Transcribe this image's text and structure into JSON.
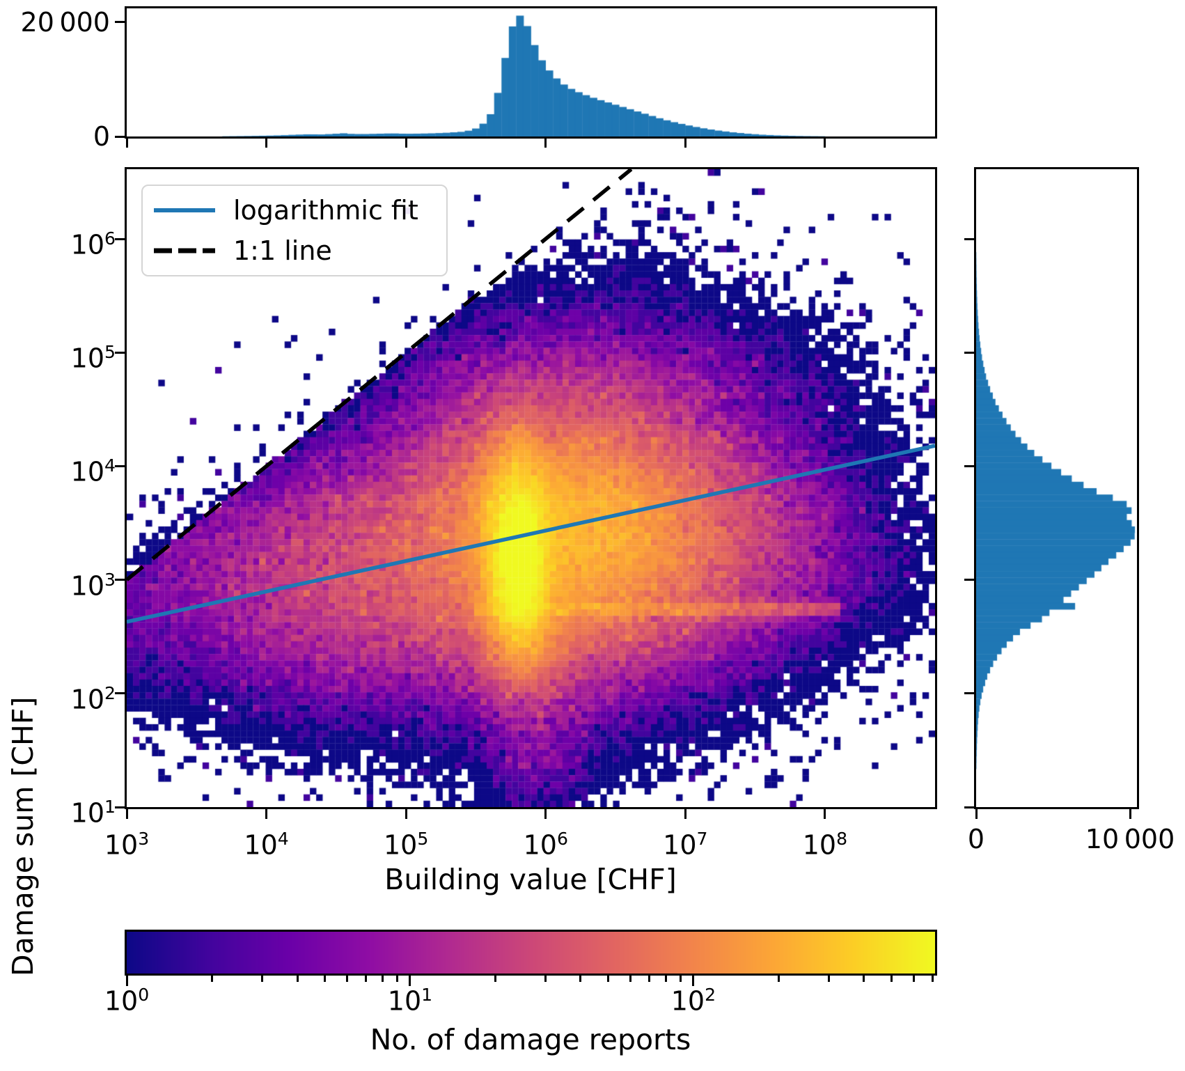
{
  "figure": {
    "background": "#ffffff",
    "axis_color": "#000000"
  },
  "colors": {
    "hist": "#1f77b4",
    "fit_line": "#1f77b4",
    "one_to_one": "#000000",
    "legend_border": "#d5d5d5"
  },
  "chart_data": [
    {
      "id": "top_marginal_histogram",
      "type": "bar",
      "orientation": "vertical",
      "xscale": "log",
      "shares_x_with": "main",
      "ylim": [
        0,
        22400
      ],
      "y_ticks": [
        {
          "value": 20000,
          "label": "20 000"
        },
        {
          "value": 0,
          "label": "0"
        }
      ],
      "bins": 110,
      "profile_log10x_count": [
        [
          3.0,
          0
        ],
        [
          3.55,
          0
        ],
        [
          3.7,
          40
        ],
        [
          3.85,
          80
        ],
        [
          4.0,
          140
        ],
        [
          4.1,
          200
        ],
        [
          4.2,
          300
        ],
        [
          4.3,
          380
        ],
        [
          4.4,
          350
        ],
        [
          4.5,
          480
        ],
        [
          4.55,
          560
        ],
        [
          4.62,
          430
        ],
        [
          4.7,
          420
        ],
        [
          4.8,
          480
        ],
        [
          4.9,
          540
        ],
        [
          5.0,
          470
        ],
        [
          5.1,
          500
        ],
        [
          5.2,
          560
        ],
        [
          5.3,
          660
        ],
        [
          5.4,
          820
        ],
        [
          5.48,
          1150
        ],
        [
          5.54,
          1900
        ],
        [
          5.6,
          3600
        ],
        [
          5.65,
          6800
        ],
        [
          5.7,
          12500
        ],
        [
          5.74,
          17500
        ],
        [
          5.78,
          20600
        ],
        [
          5.82,
          21200
        ],
        [
          5.86,
          19800
        ],
        [
          5.9,
          17200
        ],
        [
          5.94,
          14800
        ],
        [
          5.98,
          13000
        ],
        [
          6.03,
          11400
        ],
        [
          6.08,
          10100
        ],
        [
          6.14,
          8900
        ],
        [
          6.2,
          8100
        ],
        [
          6.28,
          7300
        ],
        [
          6.36,
          6600
        ],
        [
          6.44,
          6000
        ],
        [
          6.52,
          5400
        ],
        [
          6.6,
          4800
        ],
        [
          6.68,
          4200
        ],
        [
          6.76,
          3600
        ],
        [
          6.84,
          3000
        ],
        [
          6.92,
          2500
        ],
        [
          7.0,
          2050
        ],
        [
          7.08,
          1650
        ],
        [
          7.16,
          1300
        ],
        [
          7.25,
          980
        ],
        [
          7.35,
          700
        ],
        [
          7.45,
          480
        ],
        [
          7.55,
          310
        ],
        [
          7.65,
          195
        ],
        [
          7.75,
          120
        ],
        [
          7.85,
          70
        ],
        [
          8.0,
          35
        ],
        [
          8.15,
          18
        ],
        [
          8.3,
          8
        ],
        [
          8.5,
          3
        ],
        [
          8.788,
          0
        ]
      ]
    },
    {
      "id": "main_density",
      "type": "heatmap",
      "xlabel": "Building value [CHF]",
      "ylabel": "Damage sum [CHF]",
      "xscale": "log",
      "yscale": "log",
      "xlim_log10": [
        3,
        8.788
      ],
      "ylim_log10": [
        1,
        6.613
      ],
      "x_ticks": [
        {
          "log": 3,
          "label": "10^3"
        },
        {
          "log": 4,
          "label": "10^4"
        },
        {
          "log": 5,
          "label": "10^5"
        },
        {
          "log": 6,
          "label": "10^6"
        },
        {
          "log": 7,
          "label": "10^7"
        },
        {
          "log": 8,
          "label": "10^8"
        }
      ],
      "y_ticks": [
        {
          "log": 6,
          "label": "10^6"
        },
        {
          "log": 5,
          "label": "10^5"
        },
        {
          "log": 4,
          "label": "10^4"
        },
        {
          "log": 3,
          "label": "10^3"
        },
        {
          "log": 2,
          "label": "10^2"
        },
        {
          "log": 1,
          "label": "10^1"
        }
      ],
      "colormap": "plasma",
      "norm": "log",
      "vmin": 1,
      "vmax": 713,
      "grid_bins": [
        128,
        100
      ],
      "legend": {
        "items": [
          {
            "label": "logarithmic fit",
            "style": "solid",
            "color": "#1f77b4"
          },
          {
            "label": "1:1 line",
            "style": "dashed",
            "color": "#000000"
          }
        ]
      },
      "fit_line": {
        "x_log10": [
          3,
          8.788
        ],
        "y_log10": [
          2.63,
          4.18
        ]
      },
      "one_to_one_line": {
        "x_log10": [
          3,
          6.613
        ],
        "y_log10": [
          3,
          6.613
        ]
      },
      "density_model": {
        "seed": 11,
        "comment_units": "gaussian components in log10-log10 space: [amplitude_counts, cx, cy, sigx, sigy]",
        "components": [
          [
            620,
            5.8,
            3.32,
            0.13,
            0.45
          ],
          [
            300,
            5.82,
            2.95,
            0.11,
            0.3
          ],
          [
            160,
            6.15,
            3.45,
            0.48,
            0.52
          ],
          [
            70,
            6.35,
            3.4,
            0.72,
            0.48
          ],
          [
            22,
            5.55,
            3.1,
            1.05,
            0.5
          ],
          [
            14,
            4.65,
            2.95,
            0.72,
            0.45
          ],
          [
            3.0,
            5.9,
            3.15,
            0.85,
            1.0
          ],
          [
            70,
            5.85,
            2.55,
            0.2,
            0.28
          ],
          [
            6,
            5.95,
            1.8,
            0.22,
            0.45
          ],
          [
            9,
            6.35,
            4.55,
            0.75,
            0.42
          ],
          [
            1.2,
            4.55,
            2.05,
            0.75,
            0.42
          ],
          [
            1.6,
            3.18,
            2.75,
            0.22,
            0.45
          ],
          [
            0.35,
            7.9,
            3.5,
            0.55,
            0.85
          ],
          [
            0.12,
            8.45,
            4.0,
            0.35,
            1.0
          ],
          [
            0.5,
            7.3,
            4.6,
            0.6,
            0.5
          ],
          [
            0.4,
            6.6,
            5.6,
            0.6,
            0.45
          ],
          [
            0.5,
            7.0,
            2.1,
            0.5,
            0.45
          ]
        ],
        "streak_rows": [
          {
            "y_log10": 2.745,
            "sigma_y": 0.04,
            "amp": 90,
            "cx": 6.3,
            "sigma_x": 1.1,
            "x_window": [
              5.5,
              8.1
            ]
          },
          {
            "y_log10": 3.7,
            "sigma_y": 0.05,
            "amp": 14,
            "cx": 5.6,
            "sigma_x": 1.0,
            "x_window": [
              4.3,
              7.6
            ]
          }
        ],
        "diagonal_band": {
          "amp": 0.55,
          "offset": -0.55,
          "sigma": 0.45,
          "cx": 4.4,
          "sigma_x": 1.1
        },
        "above_identity_suppression": 0.12,
        "noise_sigma": 0.42
      }
    },
    {
      "id": "right_marginal_histogram",
      "type": "bar",
      "orientation": "horizontal",
      "yscale": "log",
      "shares_y_with": "main",
      "xlim": [
        0,
        10450
      ],
      "x_ticks": [
        {
          "value": 0,
          "label": "0"
        },
        {
          "value": 10000,
          "label": "10 000"
        }
      ],
      "bins": 100,
      "profile_log10y_count": [
        [
          1.0,
          0
        ],
        [
          1.15,
          4
        ],
        [
          1.3,
          12
        ],
        [
          1.45,
          30
        ],
        [
          1.6,
          65
        ],
        [
          1.75,
          120
        ],
        [
          1.85,
          190
        ],
        [
          1.95,
          300
        ],
        [
          2.05,
          480
        ],
        [
          2.15,
          720
        ],
        [
          2.25,
          1050
        ],
        [
          2.35,
          1500
        ],
        [
          2.45,
          2100
        ],
        [
          2.55,
          2900
        ],
        [
          2.62,
          3800
        ],
        [
          2.68,
          4600
        ],
        [
          2.71,
          4500
        ],
        [
          2.73,
          7200
        ],
        [
          2.76,
          7200
        ],
        [
          2.78,
          5300
        ],
        [
          2.85,
          5900
        ],
        [
          2.95,
          6800
        ],
        [
          3.05,
          7700
        ],
        [
          3.15,
          8500
        ],
        [
          3.25,
          9400
        ],
        [
          3.35,
          10200
        ],
        [
          3.42,
          10400
        ],
        [
          3.5,
          10100
        ],
        [
          3.57,
          9700
        ],
        [
          3.63,
          10300
        ],
        [
          3.7,
          9300
        ],
        [
          3.78,
          7800
        ],
        [
          3.86,
          6600
        ],
        [
          3.94,
          5600
        ],
        [
          4.02,
          4700
        ],
        [
          4.1,
          3900
        ],
        [
          4.2,
          3100
        ],
        [
          4.3,
          2450
        ],
        [
          4.42,
          1850
        ],
        [
          4.55,
          1300
        ],
        [
          4.68,
          900
        ],
        [
          4.8,
          620
        ],
        [
          4.95,
          390
        ],
        [
          5.1,
          240
        ],
        [
          5.25,
          145
        ],
        [
          5.4,
          85
        ],
        [
          5.55,
          48
        ],
        [
          5.7,
          26
        ],
        [
          5.85,
          14
        ],
        [
          6.0,
          7
        ],
        [
          6.2,
          3
        ],
        [
          6.4,
          1
        ],
        [
          6.613,
          0
        ]
      ]
    },
    {
      "id": "colorbar",
      "type": "colorbar",
      "label": "No. of damage reports",
      "scale": "log",
      "range_log10": [
        0,
        2.853
      ],
      "ticks": [
        {
          "log": 0,
          "label": "10^0"
        },
        {
          "log": 1,
          "label": "10^1"
        },
        {
          "log": 2,
          "label": "10^2"
        }
      ],
      "minor_ticks": "2-9 within each decade",
      "colormap": "plasma"
    }
  ],
  "plasma_stops": [
    [
      0.0,
      "#0d0887"
    ],
    [
      0.1,
      "#41049d"
    ],
    [
      0.2,
      "#6a00a8"
    ],
    [
      0.3,
      "#8f0da4"
    ],
    [
      0.4,
      "#b12a90"
    ],
    [
      0.5,
      "#cc4778"
    ],
    [
      0.6,
      "#e16462"
    ],
    [
      0.7,
      "#f2844b"
    ],
    [
      0.8,
      "#fca636"
    ],
    [
      0.9,
      "#fcce25"
    ],
    [
      1.0,
      "#f0f921"
    ]
  ]
}
